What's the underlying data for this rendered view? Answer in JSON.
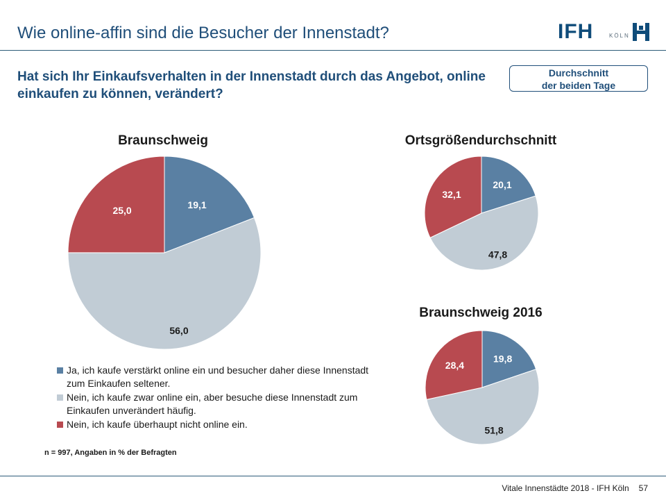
{
  "page": {
    "title": "Wie online-affin sind die Besucher der Innenstadt?",
    "question": "Hat sich Ihr Einkaufsverhalten in der Innenstadt durch das Angebot, online einkaufen zu können, verändert?",
    "avg_box_line1": "Durchschnitt",
    "avg_box_line2": "der beiden Tage",
    "logo_text": "IFH",
    "logo_city": "KÖLN",
    "note": "n = 997, Angaben in % der Befragten",
    "footer_text": "Vitale Innenstädte 2018 - IFH Köln",
    "page_number": "57"
  },
  "colors": {
    "ja": "#5a80a3",
    "nein_unveraendert": "#c1ccd5",
    "nein_nicht": "#b84a50",
    "brand": "#1f4e79"
  },
  "legend": [
    {
      "key": "ja",
      "label": "Ja, ich kaufe verstärkt online ein und besucher daher diese Innenstadt zum Einkaufen seltener."
    },
    {
      "key": "nein_unveraendert",
      "label": "Nein, ich kaufe zwar online ein, aber besuche diese Innenstadt zum Einkaufen unverändert häufig."
    },
    {
      "key": "nein_nicht",
      "label": "Nein, ich kaufe überhaupt nicht online ein."
    }
  ],
  "chart_data": [
    {
      "type": "pie",
      "title": "Braunschweig",
      "labels": [
        "ja",
        "nein_unveraendert",
        "nein_nicht"
      ],
      "values": [
        19.1,
        56.0,
        25.0
      ],
      "value_labels": [
        "19,1",
        "56,0",
        "25,0"
      ]
    },
    {
      "type": "pie",
      "title": "Ortsgrößendurchschnitt",
      "labels": [
        "ja",
        "nein_unveraendert",
        "nein_nicht"
      ],
      "values": [
        20.1,
        47.8,
        32.1
      ],
      "value_labels": [
        "20,1",
        "47,8",
        "32,1"
      ]
    },
    {
      "type": "pie",
      "title": "Braunschweig 2016",
      "labels": [
        "ja",
        "nein_unveraendert",
        "nein_nicht"
      ],
      "values": [
        19.8,
        51.8,
        28.4
      ],
      "value_labels": [
        "19,8",
        "51,8",
        "28,4"
      ]
    }
  ]
}
